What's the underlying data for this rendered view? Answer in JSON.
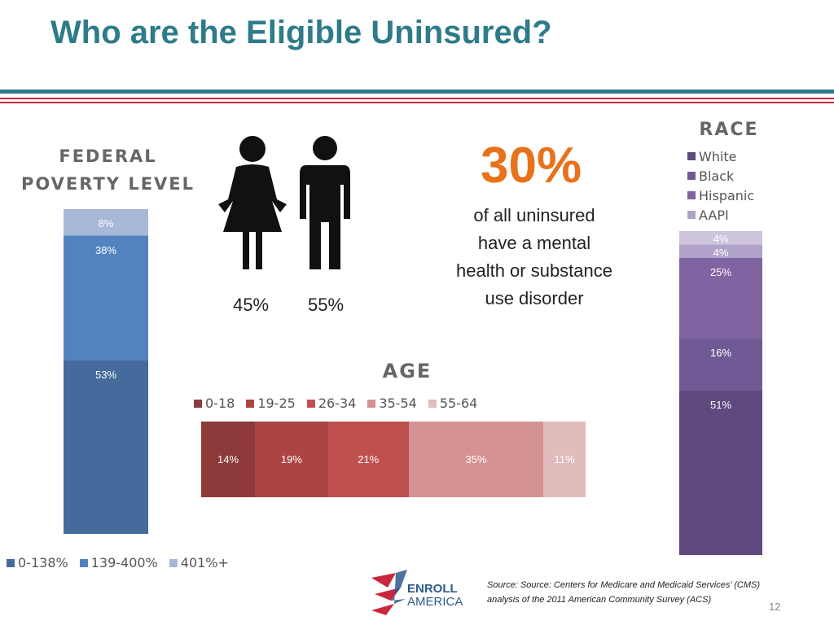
{
  "slide": {
    "title": "Who are the Eligible Uninsured?",
    "page_number": "12",
    "source": "Source: Source: Centers for Medicare and Medicaid Services’ (CMS) analysis of the 2011 American Community Survey (ACS)"
  },
  "colors": {
    "title": "#2e7b8a",
    "rule_teal": "#2e7b8a",
    "rule_red": "#c8283e",
    "highlight": "#e8721c"
  },
  "gender": {
    "female_pct": "45%",
    "male_pct": "55%"
  },
  "mental_health": {
    "pct": "30%",
    "text": "of all uninsured have a mental health or substance use disorder"
  },
  "logo": {
    "line1": "ENROLL",
    "line2": "AMERICA"
  },
  "chart_data": [
    {
      "type": "bar",
      "orientation": "vertical-stacked",
      "title": "FEDERAL POVERTY LEVEL",
      "legend_position": "bottom",
      "series": [
        {
          "name": "0-138%",
          "value": 53,
          "label": "53%",
          "color": "#456b9c"
        },
        {
          "name": "139-400%",
          "value": 38,
          "label": "38%",
          "color": "#5283c0"
        },
        {
          "name": "401%+",
          "value": 8,
          "label": "8%",
          "color": "#a8b8d8"
        }
      ]
    },
    {
      "type": "bar",
      "orientation": "horizontal-stacked",
      "title": "AGE",
      "legend_position": "top",
      "series": [
        {
          "name": "0-18",
          "value": 14,
          "label": "14%",
          "color": "#8c3a3a"
        },
        {
          "name": "19-25",
          "value": 19,
          "label": "19%",
          "color": "#ac4444"
        },
        {
          "name": "26-34",
          "value": 21,
          "label": "21%",
          "color": "#c0504d"
        },
        {
          "name": "35-54",
          "value": 35,
          "label": "35%",
          "color": "#d49292"
        },
        {
          "name": "55-64",
          "value": 11,
          "label": "11%",
          "color": "#e2bcbc"
        }
      ]
    },
    {
      "type": "bar",
      "orientation": "vertical-stacked",
      "title": "RACE",
      "legend_position": "top",
      "series": [
        {
          "name": "White",
          "value": 51,
          "label": "51%",
          "color": "#5e4a7e"
        },
        {
          "name": "Black",
          "value": 16,
          "label": "16%",
          "color": "#705a96"
        },
        {
          "name": "Hispanic",
          "value": 25,
          "label": "25%",
          "color": "#8064a2"
        },
        {
          "name": "AAPI",
          "value": 4,
          "label": "4%",
          "color": "#b0a2c8"
        },
        {
          "name": "",
          "value": 4,
          "label": "4%",
          "color": "#cec4dc"
        }
      ]
    }
  ]
}
